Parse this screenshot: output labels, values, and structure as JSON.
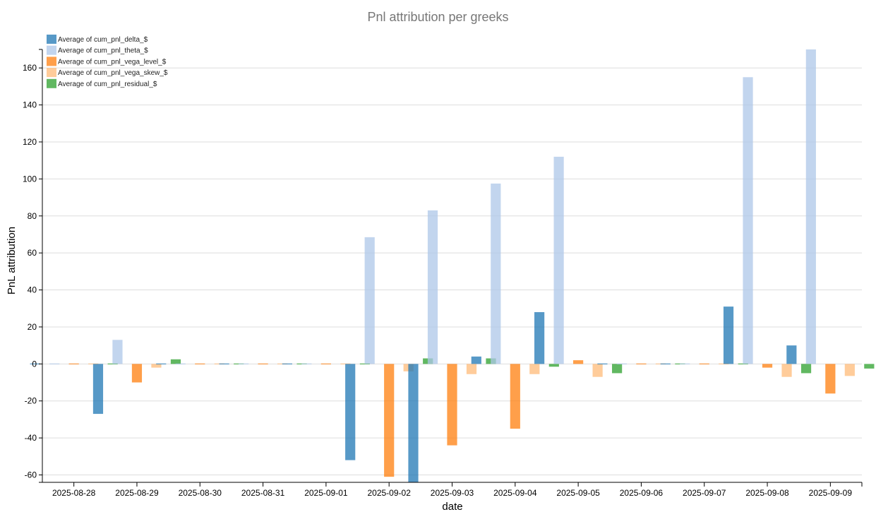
{
  "chart_data": {
    "type": "bar",
    "title": "Pnl attribution per greeks",
    "xlabel": "date",
    "ylabel": "PnL attribution",
    "ylim": [
      -64,
      170
    ],
    "yticks": [
      -60,
      -40,
      -20,
      0,
      20,
      40,
      60,
      80,
      100,
      120,
      140,
      160
    ],
    "grid": true,
    "legend_position": "top-left",
    "categories": [
      "2025-08-28",
      "2025-08-29",
      "2025-08-30",
      "2025-08-31",
      "2025-09-01",
      "2025-09-02",
      "2025-09-03",
      "2025-09-04",
      "2025-09-05",
      "2025-09-06",
      "2025-09-07",
      "2025-09-08",
      "2025-09-09"
    ],
    "series": [
      {
        "name": "Average of cum_pnl_delta_$",
        "color": "#1f77b4",
        "values": [
          0,
          -27,
          0,
          0,
          0,
          -52,
          -64,
          4,
          28,
          0,
          0,
          31,
          10
        ]
      },
      {
        "name": "Average of cum_pnl_theta_$",
        "color": "#aec7e8",
        "values": [
          0,
          13,
          0,
          0,
          0,
          68.5,
          83,
          97.5,
          112,
          0,
          0,
          155,
          170
        ]
      },
      {
        "name": "Average of cum_pnl_vega_level_$",
        "color": "#ff7f0e",
        "values": [
          0,
          -10,
          0,
          0,
          0,
          -61,
          -44,
          -35,
          2,
          0,
          0,
          -2,
          -16
        ]
      },
      {
        "name": "Average of cum_pnl_vega_skew_$",
        "color": "#ffbb78",
        "values": [
          0,
          -2,
          0,
          0,
          0,
          -4,
          -5.5,
          -5.5,
          -7,
          0,
          0,
          -7,
          -6.5
        ]
      },
      {
        "name": "Average of cum_pnl_residual_$",
        "color": "#2ca02c",
        "values": [
          0,
          2.5,
          0,
          0,
          0,
          3,
          3,
          -1.5,
          -5,
          0,
          0,
          -5,
          -2.5
        ]
      }
    ]
  }
}
